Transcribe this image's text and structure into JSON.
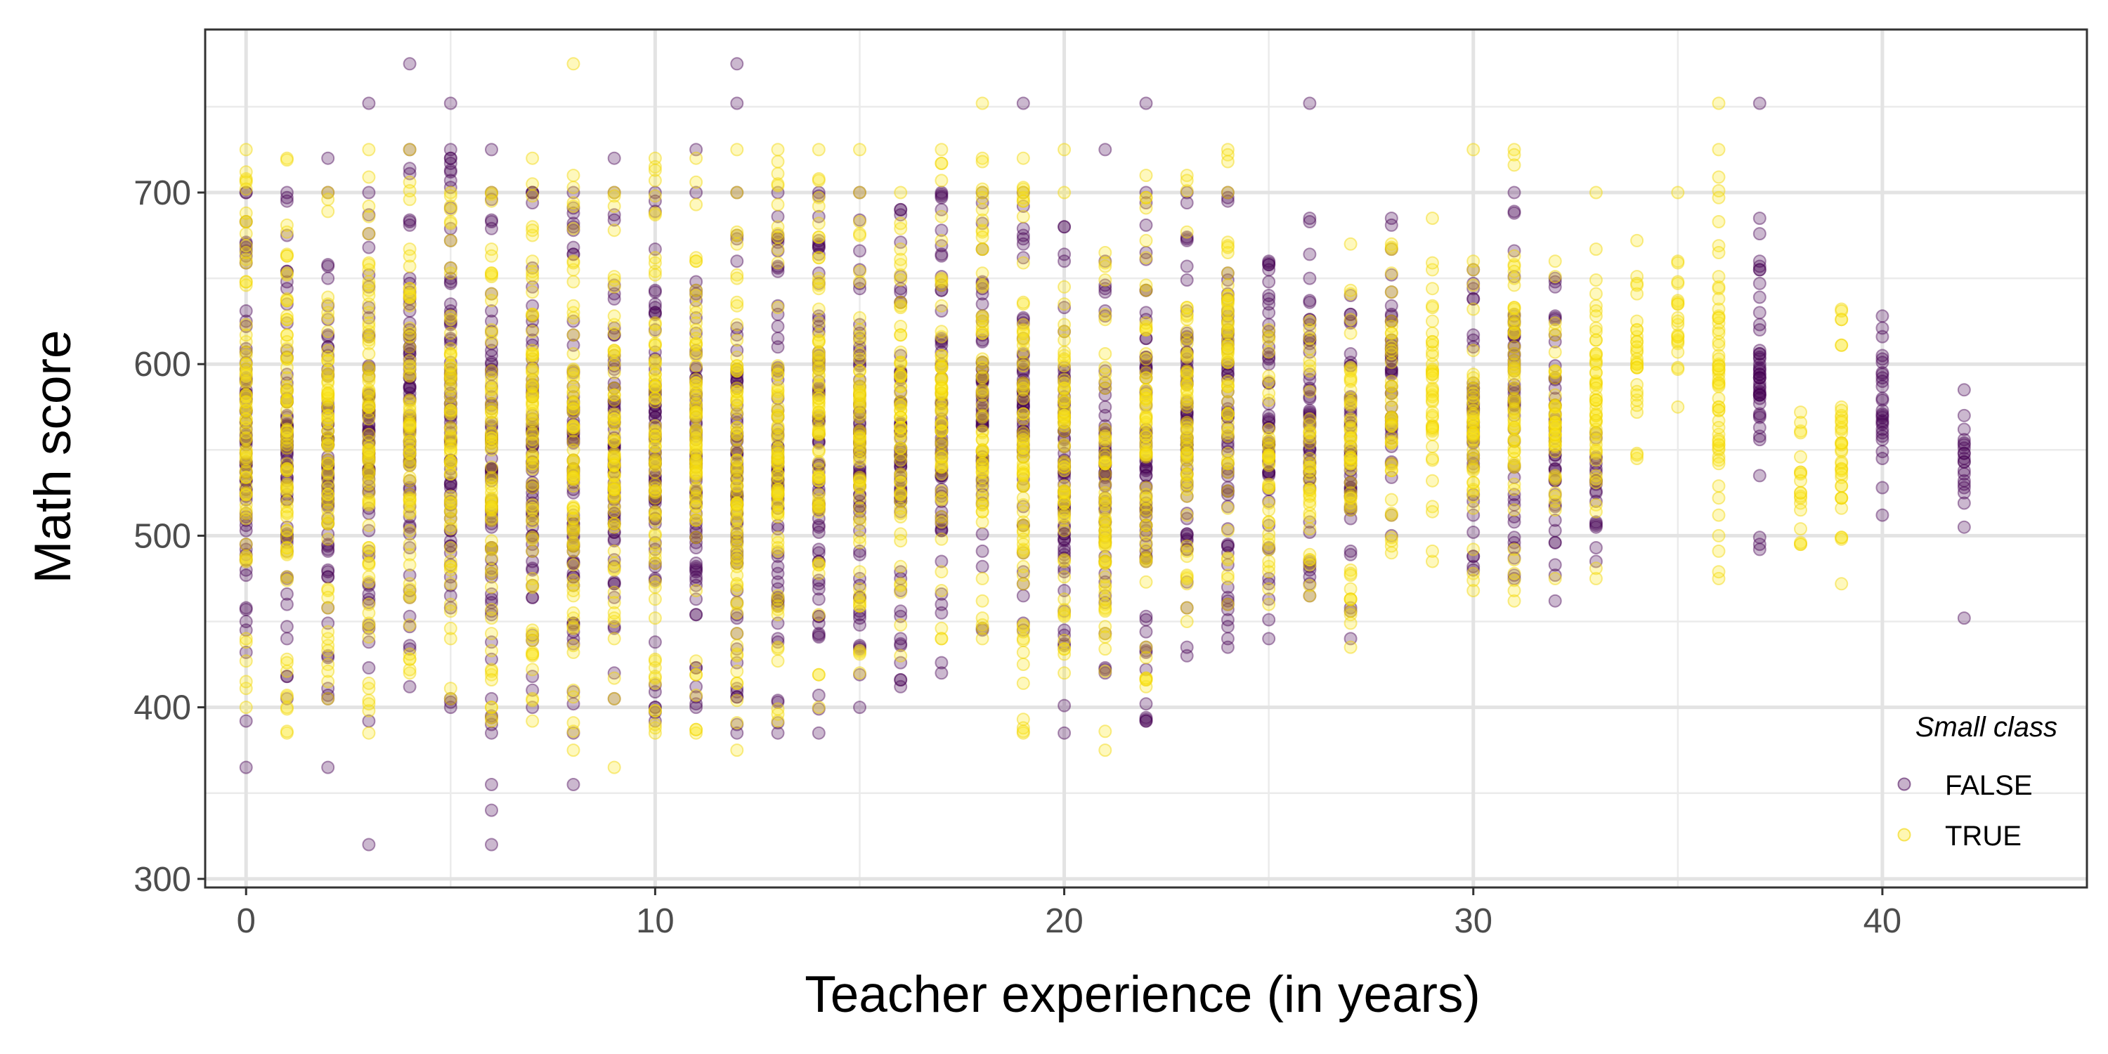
{
  "chart_data": {
    "type": "scatter",
    "title": "",
    "xlabel": "Teacher experience (in years)",
    "ylabel": "Math score",
    "xlim": [
      -1,
      45
    ],
    "ylim": [
      295,
      795
    ],
    "x_ticks": [
      0,
      10,
      20,
      30,
      40
    ],
    "y_ticks": [
      300,
      400,
      500,
      600,
      700
    ],
    "grid": true,
    "legend": {
      "title": "Small class",
      "position": "bottom-right-inside"
    },
    "series": [
      {
        "name": "FALSE",
        "color": "#440154",
        "columns": [
          {
            "x": 0,
            "min": 392,
            "max": 700,
            "outliers": [
              365
            ]
          },
          {
            "x": 1,
            "min": 405,
            "max": 700,
            "outliers": []
          },
          {
            "x": 2,
            "min": 405,
            "max": 700,
            "outliers": [
              365,
              720
            ]
          },
          {
            "x": 3,
            "min": 392,
            "max": 700,
            "outliers": [
              320,
              752
            ]
          },
          {
            "x": 4,
            "min": 412,
            "max": 725,
            "outliers": [
              775
            ]
          },
          {
            "x": 5,
            "min": 400,
            "max": 725,
            "outliers": [
              752
            ]
          },
          {
            "x": 6,
            "min": 385,
            "max": 700,
            "outliers": [
              320,
              340,
              355,
              725
            ]
          },
          {
            "x": 7,
            "min": 400,
            "max": 700,
            "outliers": []
          },
          {
            "x": 8,
            "min": 385,
            "max": 700,
            "outliers": [
              355
            ]
          },
          {
            "x": 9,
            "min": 405,
            "max": 700,
            "outliers": [
              720
            ]
          },
          {
            "x": 10,
            "min": 392,
            "max": 700,
            "outliers": []
          },
          {
            "x": 11,
            "min": 400,
            "max": 700,
            "outliers": [
              725
            ]
          },
          {
            "x": 12,
            "min": 385,
            "max": 700,
            "outliers": [
              752,
              775
            ]
          },
          {
            "x": 13,
            "min": 385,
            "max": 700,
            "outliers": []
          },
          {
            "x": 14,
            "min": 385,
            "max": 700,
            "outliers": []
          },
          {
            "x": 15,
            "min": 400,
            "max": 700,
            "outliers": []
          },
          {
            "x": 16,
            "min": 412,
            "max": 690,
            "outliers": []
          },
          {
            "x": 17,
            "min": 420,
            "max": 700,
            "outliers": []
          },
          {
            "x": 18,
            "min": 445,
            "max": 700,
            "outliers": []
          },
          {
            "x": 19,
            "min": 445,
            "max": 700,
            "outliers": [
              752
            ]
          },
          {
            "x": 20,
            "min": 385,
            "max": 680,
            "outliers": []
          },
          {
            "x": 21,
            "min": 420,
            "max": 660,
            "outliers": [
              725
            ]
          },
          {
            "x": 22,
            "min": 392,
            "max": 700,
            "outliers": [
              752
            ]
          },
          {
            "x": 23,
            "min": 430,
            "max": 700,
            "outliers": []
          },
          {
            "x": 24,
            "min": 435,
            "max": 700,
            "outliers": []
          },
          {
            "x": 25,
            "min": 440,
            "max": 660,
            "outliers": []
          },
          {
            "x": 26,
            "min": 465,
            "max": 685,
            "outliers": [
              752
            ]
          },
          {
            "x": 27,
            "min": 440,
            "max": 640,
            "outliers": []
          },
          {
            "x": 28,
            "min": 500,
            "max": 685,
            "outliers": []
          },
          {
            "x": 30,
            "min": 480,
            "max": 655,
            "outliers": []
          },
          {
            "x": 31,
            "min": 475,
            "max": 700,
            "outliers": []
          },
          {
            "x": 32,
            "min": 462,
            "max": 650,
            "outliers": []
          },
          {
            "x": 33,
            "min": 485,
            "max": 560,
            "outliers": []
          },
          {
            "x": 37,
            "min": 492,
            "max": 685,
            "outliers": [
              752
            ]
          },
          {
            "x": 40,
            "min": 512,
            "max": 628,
            "outliers": []
          },
          {
            "x": 42,
            "min": 505,
            "max": 585,
            "outliers": [
              452
            ]
          }
        ]
      },
      {
        "name": "TRUE",
        "color": "#FDE725",
        "columns": [
          {
            "x": 0,
            "min": 400,
            "max": 725,
            "outliers": []
          },
          {
            "x": 1,
            "min": 385,
            "max": 720,
            "outliers": []
          },
          {
            "x": 2,
            "min": 405,
            "max": 700,
            "outliers": []
          },
          {
            "x": 3,
            "min": 385,
            "max": 725,
            "outliers": []
          },
          {
            "x": 4,
            "min": 420,
            "max": 725,
            "outliers": []
          },
          {
            "x": 5,
            "min": 405,
            "max": 700,
            "outliers": []
          },
          {
            "x": 6,
            "min": 392,
            "max": 700,
            "outliers": []
          },
          {
            "x": 7,
            "min": 392,
            "max": 720,
            "outliers": []
          },
          {
            "x": 8,
            "min": 375,
            "max": 710,
            "outliers": [
              775
            ]
          },
          {
            "x": 9,
            "min": 405,
            "max": 700,
            "outliers": [
              365
            ]
          },
          {
            "x": 10,
            "min": 385,
            "max": 720,
            "outliers": []
          },
          {
            "x": 11,
            "min": 385,
            "max": 720,
            "outliers": []
          },
          {
            "x": 12,
            "min": 375,
            "max": 725,
            "outliers": []
          },
          {
            "x": 13,
            "min": 392,
            "max": 725,
            "outliers": []
          },
          {
            "x": 14,
            "min": 400,
            "max": 725,
            "outliers": []
          },
          {
            "x": 15,
            "min": 420,
            "max": 700,
            "outliers": [
              725
            ]
          },
          {
            "x": 16,
            "min": 430,
            "max": 700,
            "outliers": []
          },
          {
            "x": 17,
            "min": 440,
            "max": 725,
            "outliers": []
          },
          {
            "x": 18,
            "min": 440,
            "max": 720,
            "outliers": [
              752
            ]
          },
          {
            "x": 19,
            "min": 385,
            "max": 720,
            "outliers": []
          },
          {
            "x": 20,
            "min": 420,
            "max": 700,
            "outliers": [
              725
            ]
          },
          {
            "x": 21,
            "min": 375,
            "max": 665,
            "outliers": []
          },
          {
            "x": 22,
            "min": 412,
            "max": 710,
            "outliers": []
          },
          {
            "x": 23,
            "min": 450,
            "max": 710,
            "outliers": []
          },
          {
            "x": 24,
            "min": 460,
            "max": 725,
            "outliers": []
          },
          {
            "x": 25,
            "min": 460,
            "max": 620,
            "outliers": []
          },
          {
            "x": 26,
            "min": 465,
            "max": 625,
            "outliers": []
          },
          {
            "x": 27,
            "min": 435,
            "max": 670,
            "outliers": []
          },
          {
            "x": 28,
            "min": 490,
            "max": 670,
            "outliers": []
          },
          {
            "x": 29,
            "min": 485,
            "max": 685,
            "outliers": []
          },
          {
            "x": 30,
            "min": 468,
            "max": 660,
            "outliers": [
              725
            ]
          },
          {
            "x": 31,
            "min": 462,
            "max": 725,
            "outliers": []
          },
          {
            "x": 32,
            "min": 475,
            "max": 660,
            "outliers": []
          },
          {
            "x": 33,
            "min": 475,
            "max": 700,
            "outliers": []
          },
          {
            "x": 34,
            "min": 545,
            "max": 672,
            "outliers": []
          },
          {
            "x": 35,
            "min": 575,
            "max": 660,
            "outliers": [
              700
            ]
          },
          {
            "x": 36,
            "min": 475,
            "max": 725,
            "outliers": [
              752
            ]
          },
          {
            "x": 38,
            "min": 495,
            "max": 572,
            "outliers": []
          },
          {
            "x": 39,
            "min": 472,
            "max": 632,
            "outliers": []
          }
        ]
      }
    ]
  }
}
